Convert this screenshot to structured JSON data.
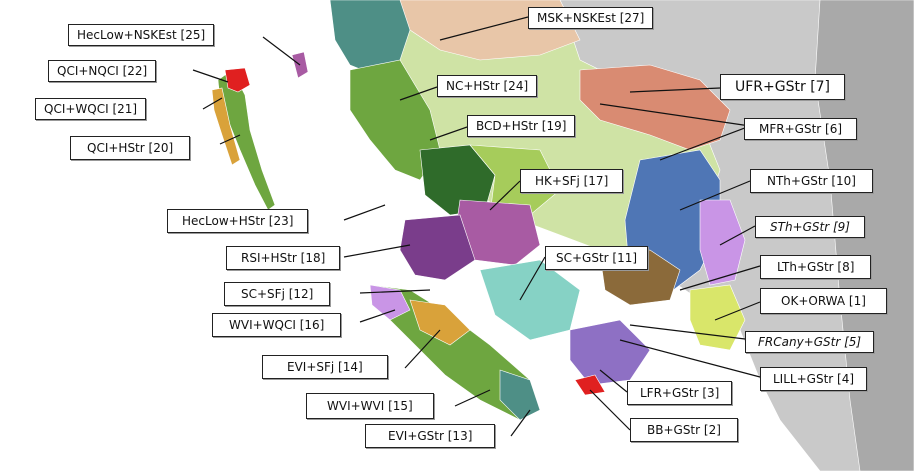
{
  "map": {
    "colors": {
      "ocean": "#ffffff",
      "land_grey": "#c9c9c9",
      "land_grey_dark": "#a9a9a9",
      "light_green": "#cfe3a5",
      "tan": "#e8c6a8",
      "teal": "#4e8f86",
      "dark_green": "#2f6b2a",
      "mid_green": "#6ea640",
      "olive": "#a6cc5b",
      "salmon": "#d98b72",
      "blue": "#4f76b5",
      "lavender": "#c995e6",
      "magenta": "#a85ba3",
      "purple": "#7a3d8b",
      "brown": "#8b6a3a",
      "orange": "#d9a23a",
      "aqua": "#86d2c5",
      "red": "#e02020",
      "yellow_green": "#d9e66a",
      "violet": "#8e70c4",
      "line": "#111111"
    },
    "labels": [
      {
        "id": "lbl-msk-nskest",
        "text": "MSK+NSKEst [27]",
        "italic": false
      },
      {
        "id": "lbl-heclow-nskest",
        "text": "HecLow+NSKEst [25]",
        "italic": false
      },
      {
        "id": "lbl-qci-nqci",
        "text": "QCI+NQCI [22]",
        "italic": false
      },
      {
        "id": "lbl-nc-hstr",
        "text": "NC+HStr [24]",
        "italic": false
      },
      {
        "id": "lbl-ufr-gstr",
        "text": "UFR+GStr [7]",
        "italic": false
      },
      {
        "id": "lbl-qci-wqci",
        "text": "QCI+WQCI [21]",
        "italic": false
      },
      {
        "id": "lbl-bcd-hstr",
        "text": "BCD+HStr [19]",
        "italic": false
      },
      {
        "id": "lbl-mfr-gstr",
        "text": "MFR+GStr [6]",
        "italic": false
      },
      {
        "id": "lbl-qci-hstr",
        "text": "QCI+HStr [20]",
        "italic": false
      },
      {
        "id": "lbl-hk-sfj",
        "text": "HK+SFj [17]",
        "italic": false
      },
      {
        "id": "lbl-nth-gstr",
        "text": "NTh+GStr [10]",
        "italic": false
      },
      {
        "id": "lbl-heclow-hstr",
        "text": "HecLow+HStr [23]",
        "italic": false
      },
      {
        "id": "lbl-sth-gstr",
        "text": "STh+GStr [9]",
        "italic": true
      },
      {
        "id": "lbl-rsi-hstr",
        "text": "RSI+HStr [18]",
        "italic": false
      },
      {
        "id": "lbl-sc-gstr",
        "text": "SC+GStr [11]",
        "italic": false
      },
      {
        "id": "lbl-lth-gstr",
        "text": "LTh+GStr [8]",
        "italic": false
      },
      {
        "id": "lbl-sc-sfj",
        "text": "SC+SFj [12]",
        "italic": false
      },
      {
        "id": "lbl-ok-orwa",
        "text": "OK+ORWA [1]",
        "italic": false
      },
      {
        "id": "lbl-wvi-wqci",
        "text": "WVI+WQCI [16]",
        "italic": false
      },
      {
        "id": "lbl-frcany-gstr",
        "text": "FRCany+GStr [5]",
        "italic": true
      },
      {
        "id": "lbl-evi-sfj",
        "text": "EVI+SFj [14]",
        "italic": false
      },
      {
        "id": "lbl-lill-gstr",
        "text": "LILL+GStr [4]",
        "italic": false
      },
      {
        "id": "lbl-lfr-gstr",
        "text": "LFR+GStr [3]",
        "italic": false
      },
      {
        "id": "lbl-wvi-wvi",
        "text": "WVI+WVI [15]",
        "italic": false
      },
      {
        "id": "lbl-bb-gstr",
        "text": "BB+GStr [2]",
        "italic": false
      },
      {
        "id": "lbl-evi-gstr",
        "text": "EVI+GStr [13]",
        "italic": false
      }
    ]
  }
}
